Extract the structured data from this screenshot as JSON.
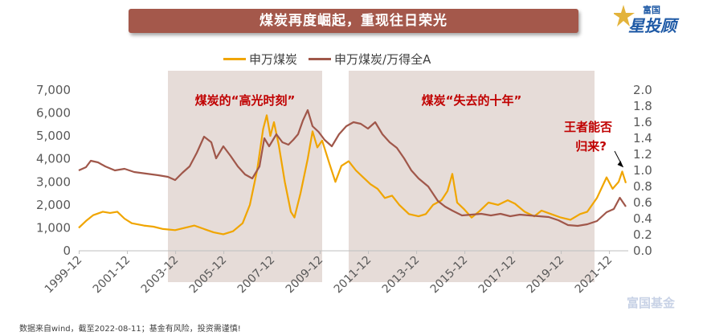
{
  "page": {
    "title": "煤炭再度崛起，重现往日荣光",
    "logo_small": "富国",
    "logo_big": "星投顾",
    "footnote": "数据来自wind，截至2022-08-11；基金有风险，投资需谨慎!",
    "watermark": "富国基金"
  },
  "chart_data": {
    "type": "line",
    "title": "煤炭再度崛起，重现往日荣光",
    "xlabel": "",
    "ylabel": "",
    "x_ticks": [
      "1999-12",
      "2001-12",
      "2003-12",
      "2005-12",
      "2007-12",
      "2009-12",
      "2011-12",
      "2013-12",
      "2015-12",
      "2017-12",
      "2019-12",
      "2021-12"
    ],
    "y_left": {
      "lim": [
        0,
        7000
      ],
      "ticks": [
        "0",
        "1,000",
        "2,000",
        "3,000",
        "4,000",
        "5,000",
        "6,000",
        "7,000"
      ]
    },
    "y_right": {
      "lim": [
        0,
        2.0
      ],
      "ticks": [
        "0.0",
        "0.2",
        "0.4",
        "0.6",
        "0.8",
        "1.0",
        "1.2",
        "1.4",
        "1.6",
        "1.8",
        "2.0"
      ]
    },
    "grid": false,
    "legend_position": "top-center",
    "shaded_regions": [
      {
        "start": 2003.6,
        "end": 2010.0,
        "label": "煤炭的“高光时刻”"
      },
      {
        "start": 2011.1,
        "end": 2021.3,
        "label": "煤炭“失去的十年”"
      }
    ],
    "annotation": {
      "text_line1": "王者能否",
      "text_line2": "归来?",
      "x": 2022.55,
      "y": 1.0
    },
    "colors": {
      "series1": "#f0a500",
      "series2": "#a0574a",
      "shade": "#e6dcd8",
      "annotation": "#c00000",
      "axis": "#bfbfbf",
      "tick_text": "#595959"
    },
    "series": [
      {
        "name": "申万煤炭",
        "axis": "left",
        "points": [
          [
            1999.9,
            1000
          ],
          [
            2000.2,
            1300
          ],
          [
            2000.5,
            1550
          ],
          [
            2000.9,
            1700
          ],
          [
            2001.2,
            1650
          ],
          [
            2001.5,
            1700
          ],
          [
            2001.8,
            1400
          ],
          [
            2002.1,
            1200
          ],
          [
            2002.6,
            1100
          ],
          [
            2003.0,
            1050
          ],
          [
            2003.4,
            950
          ],
          [
            2003.9,
            900
          ],
          [
            2004.3,
            1000
          ],
          [
            2004.7,
            1100
          ],
          [
            2005.1,
            950
          ],
          [
            2005.5,
            800
          ],
          [
            2005.9,
            720
          ],
          [
            2006.3,
            850
          ],
          [
            2006.7,
            1200
          ],
          [
            2007.0,
            2000
          ],
          [
            2007.3,
            3500
          ],
          [
            2007.55,
            5300
          ],
          [
            2007.7,
            5900
          ],
          [
            2007.85,
            5000
          ],
          [
            2008.0,
            5600
          ],
          [
            2008.2,
            4600
          ],
          [
            2008.45,
            3000
          ],
          [
            2008.7,
            1700
          ],
          [
            2008.85,
            1450
          ],
          [
            2009.1,
            2500
          ],
          [
            2009.4,
            4000
          ],
          [
            2009.6,
            5200
          ],
          [
            2009.8,
            4500
          ],
          [
            2010.0,
            4800
          ],
          [
            2010.3,
            3800
          ],
          [
            2010.55,
            3000
          ],
          [
            2010.8,
            3700
          ],
          [
            2011.1,
            3900
          ],
          [
            2011.4,
            3500
          ],
          [
            2011.7,
            3200
          ],
          [
            2012.0,
            2900
          ],
          [
            2012.3,
            2700
          ],
          [
            2012.6,
            2300
          ],
          [
            2012.9,
            2400
          ],
          [
            2013.2,
            2000
          ],
          [
            2013.6,
            1600
          ],
          [
            2014.0,
            1500
          ],
          [
            2014.3,
            1600
          ],
          [
            2014.6,
            2000
          ],
          [
            2014.95,
            2200
          ],
          [
            2015.2,
            2600
          ],
          [
            2015.4,
            3350
          ],
          [
            2015.6,
            2100
          ],
          [
            2015.9,
            1800
          ],
          [
            2016.2,
            1450
          ],
          [
            2016.5,
            1700
          ],
          [
            2016.9,
            2100
          ],
          [
            2017.3,
            2000
          ],
          [
            2017.7,
            2200
          ],
          [
            2018.0,
            2050
          ],
          [
            2018.4,
            1700
          ],
          [
            2018.8,
            1500
          ],
          [
            2019.1,
            1750
          ],
          [
            2019.5,
            1600
          ],
          [
            2019.9,
            1450
          ],
          [
            2020.3,
            1350
          ],
          [
            2020.7,
            1600
          ],
          [
            2021.0,
            1700
          ],
          [
            2021.4,
            2300
          ],
          [
            2021.8,
            3200
          ],
          [
            2022.05,
            2700
          ],
          [
            2022.3,
            3000
          ],
          [
            2022.45,
            3450
          ],
          [
            2022.6,
            2950
          ]
        ]
      },
      {
        "name": "申万煤炭/万得全A",
        "axis": "right",
        "points": [
          [
            1999.9,
            1.0
          ],
          [
            2000.2,
            1.04
          ],
          [
            2000.4,
            1.12
          ],
          [
            2000.7,
            1.1
          ],
          [
            2001.0,
            1.05
          ],
          [
            2001.4,
            1.0
          ],
          [
            2001.8,
            1.02
          ],
          [
            2002.2,
            0.98
          ],
          [
            2002.7,
            0.96
          ],
          [
            2003.2,
            0.94
          ],
          [
            2003.6,
            0.92
          ],
          [
            2003.9,
            0.88
          ],
          [
            2004.2,
            0.97
          ],
          [
            2004.5,
            1.05
          ],
          [
            2004.8,
            1.22
          ],
          [
            2005.1,
            1.42
          ],
          [
            2005.4,
            1.35
          ],
          [
            2005.6,
            1.15
          ],
          [
            2005.9,
            1.3
          ],
          [
            2006.2,
            1.18
          ],
          [
            2006.5,
            1.05
          ],
          [
            2006.8,
            0.95
          ],
          [
            2007.1,
            0.9
          ],
          [
            2007.4,
            1.05
          ],
          [
            2007.6,
            1.4
          ],
          [
            2007.8,
            1.3
          ],
          [
            2008.1,
            1.45
          ],
          [
            2008.35,
            1.35
          ],
          [
            2008.6,
            1.32
          ],
          [
            2008.8,
            1.38
          ],
          [
            2009.0,
            1.45
          ],
          [
            2009.2,
            1.62
          ],
          [
            2009.4,
            1.75
          ],
          [
            2009.6,
            1.55
          ],
          [
            2009.85,
            1.48
          ],
          [
            2010.1,
            1.38
          ],
          [
            2010.4,
            1.3
          ],
          [
            2010.7,
            1.45
          ],
          [
            2011.0,
            1.55
          ],
          [
            2011.3,
            1.6
          ],
          [
            2011.6,
            1.58
          ],
          [
            2011.9,
            1.52
          ],
          [
            2012.2,
            1.6
          ],
          [
            2012.5,
            1.45
          ],
          [
            2012.8,
            1.35
          ],
          [
            2013.1,
            1.28
          ],
          [
            2013.4,
            1.15
          ],
          [
            2013.7,
            1.0
          ],
          [
            2014.0,
            0.9
          ],
          [
            2014.4,
            0.8
          ],
          [
            2014.8,
            0.62
          ],
          [
            2015.1,
            0.55
          ],
          [
            2015.4,
            0.5
          ],
          [
            2015.8,
            0.44
          ],
          [
            2016.2,
            0.45
          ],
          [
            2016.6,
            0.46
          ],
          [
            2017.0,
            0.44
          ],
          [
            2017.4,
            0.46
          ],
          [
            2017.8,
            0.43
          ],
          [
            2018.2,
            0.45
          ],
          [
            2018.6,
            0.44
          ],
          [
            2019.0,
            0.43
          ],
          [
            2019.4,
            0.42
          ],
          [
            2019.8,
            0.38
          ],
          [
            2020.2,
            0.32
          ],
          [
            2020.6,
            0.31
          ],
          [
            2021.0,
            0.33
          ],
          [
            2021.4,
            0.37
          ],
          [
            2021.8,
            0.48
          ],
          [
            2022.1,
            0.52
          ],
          [
            2022.35,
            0.66
          ],
          [
            2022.6,
            0.55
          ]
        ]
      }
    ]
  }
}
